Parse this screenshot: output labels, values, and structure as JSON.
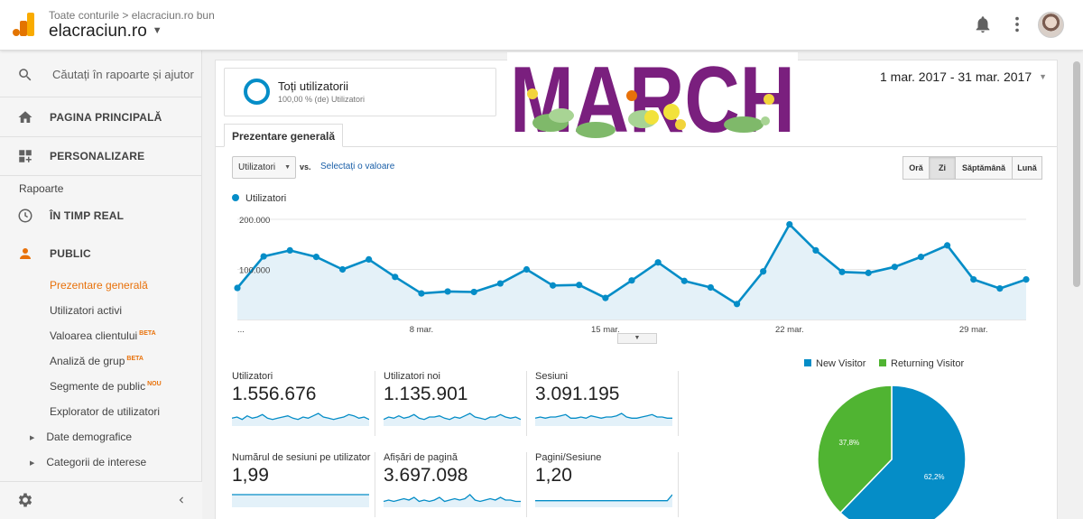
{
  "header": {
    "breadcrumb": "Toate conturile > elacraciun.ro bun",
    "account": "elacraciun.ro"
  },
  "sidebar": {
    "search_placeholder": "Căutați în rapoarte și ajutor",
    "home": "PAGINA PRINCIPALĂ",
    "customization": "PERSONALIZARE",
    "reports_section": "Rapoarte",
    "realtime": "ÎN TIMP REAL",
    "audience": "PUBLIC",
    "audience_items": {
      "overview": "Prezentare generală",
      "active_users": "Utilizatori activi",
      "lifetime_value": "Valoarea clientului",
      "lifetime_value_badge": "BETA",
      "cohort": "Analiză de grup",
      "cohort_badge": "BETA",
      "segments": "Segmente de public",
      "segments_badge": "NOU",
      "user_explorer": "Explorator de utilizatori",
      "demographics": "Date demografice",
      "interests": "Categorii de interese"
    }
  },
  "segment": {
    "title": "Toți utilizatorii",
    "subtitle": "100,00 % (de) Utilizatori"
  },
  "date_range": "1 mar. 2017 - 31 mar. 2017",
  "tab_overview": "Prezentare generală",
  "metric_select": "Utilizatori",
  "vs": "vs.",
  "select_value": "Selectați o valoare",
  "periods": [
    "Oră",
    "Zi",
    "Săptămână",
    "Lună"
  ],
  "active_period": "Zi",
  "banner_text": "MARCH",
  "colors": {
    "accent_orange": "#e8710a",
    "series_blue": "#058dc7",
    "returning_green": "#50b432",
    "banner_purple": "#7a1f7e"
  },
  "icons": {
    "logo": "analytics-logo-icon",
    "bell": "bell-icon",
    "more": "more-vert-icon",
    "search": "search-icon",
    "home": "home-icon",
    "customization": "dashboard-customize-icon",
    "realtime": "clock-icon",
    "audience": "person-icon",
    "settings": "gear-icon",
    "collapse": "chevron-left-icon"
  },
  "chart_data": [
    {
      "type": "area",
      "series": [
        {
          "name": "Utilizatori",
          "values": [
            63000,
            126000,
            138000,
            125000,
            100000,
            120000,
            85000,
            52000,
            56000,
            55000,
            72000,
            100000,
            68000,
            69000,
            43000,
            78000,
            114000,
            77000,
            64000,
            31000,
            96000,
            190000,
            138000,
            95000,
            93000,
            105000,
            125000,
            148000,
            80000,
            62000,
            80000
          ]
        }
      ],
      "y_ticks": [
        "200.000",
        "100.000"
      ],
      "ylim": [
        0,
        200000
      ],
      "x_ticks": [
        "...",
        "8 mar.",
        "15 mar.",
        "22 mar.",
        "29 mar."
      ],
      "grid": true
    },
    {
      "type": "pie",
      "labels": [
        "New Visitor",
        "Returning Visitor"
      ],
      "values": [
        62.2,
        37.8
      ],
      "value_labels": [
        "62,2%",
        "37,8%"
      ],
      "legend": "top"
    }
  ],
  "scorecards": [
    {
      "label": "Utilizatori",
      "value": "1.556.676",
      "spark": [
        5,
        6,
        4,
        7,
        5,
        6,
        8,
        5,
        4,
        5,
        6,
        7,
        5,
        4,
        6,
        5,
        7,
        9,
        6,
        5,
        4,
        5,
        6,
        8,
        7,
        5,
        6,
        4
      ]
    },
    {
      "label": "Utilizatori noi",
      "value": "1.135.901",
      "spark": [
        4,
        6,
        5,
        7,
        5,
        6,
        8,
        5,
        4,
        6,
        6,
        7,
        5,
        4,
        6,
        5,
        7,
        9,
        6,
        5,
        4,
        6,
        6,
        8,
        6,
        5,
        6,
        4
      ]
    },
    {
      "label": "Sesiuni",
      "value": "3.091.195",
      "spark": [
        5,
        6,
        5,
        6,
        6,
        7,
        8,
        5,
        5,
        6,
        5,
        7,
        6,
        5,
        6,
        6,
        7,
        9,
        6,
        5,
        5,
        6,
        7,
        8,
        6,
        6,
        5,
        5
      ]
    },
    {
      "label": "Numărul de sesiuni pe utilizator",
      "value": "1,99",
      "spark": [
        5,
        5,
        5,
        5,
        5,
        5,
        5,
        5,
        5,
        5,
        5,
        5,
        5,
        5,
        5,
        5,
        5,
        5,
        5,
        5,
        5,
        5,
        5,
        5,
        5,
        5,
        5,
        5
      ]
    },
    {
      "label": "Afișări de pagină",
      "value": "3.697.098",
      "spark": [
        3,
        4,
        3,
        4,
        5,
        4,
        6,
        3,
        4,
        3,
        4,
        6,
        3,
        4,
        5,
        4,
        5,
        8,
        4,
        3,
        4,
        5,
        4,
        6,
        4,
        4,
        3,
        3
      ]
    },
    {
      "label": "Pagini/Sesiune",
      "value": "1,20",
      "spark": [
        4,
        4,
        4,
        4,
        4,
        4,
        4,
        4,
        4,
        4,
        4,
        4,
        4,
        4,
        4,
        4,
        4,
        4,
        4,
        4,
        4,
        4,
        4,
        4,
        4,
        4,
        4,
        9
      ]
    }
  ]
}
